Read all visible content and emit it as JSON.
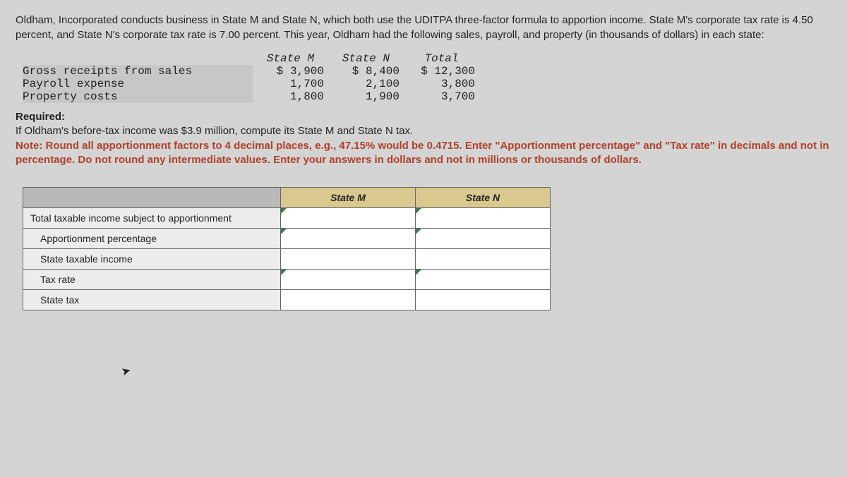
{
  "intro": "Oldham, Incorporated conducts business in State M and State N, which both use the UDITPA three-factor formula to apportion income. State M's corporate tax rate is 4.50 percent, and State N's corporate tax rate is 7.00 percent. This year, Oldham had the following sales, payroll, and property (in thousands of dollars) in each state:",
  "data_table": {
    "headers": {
      "c1": "State M",
      "c2": "State N",
      "c3": "Total"
    },
    "rows": [
      {
        "label": "Gross receipts from sales",
        "m": "$ 3,900",
        "n": "$ 8,400",
        "t": "$ 12,300"
      },
      {
        "label": "Payroll expense",
        "m": "1,700",
        "n": "2,100",
        "t": "3,800"
      },
      {
        "label": "Property costs",
        "m": "1,800",
        "n": "1,900",
        "t": "3,700"
      }
    ]
  },
  "required_heading": "Required:",
  "required_line": "If Oldham's before-tax income was $3.9 million, compute its State M and State N tax.",
  "note_text": "Note: Round all apportionment factors to 4 decimal places, e.g., 47.15% would be 0.4715. Enter \"Apportionment percentage\" and \"Tax rate\" in decimals and not in percentage. Do not round any intermediate values. Enter your answers in dollars and not in millions or thousands of dollars.",
  "answer_table": {
    "col_m": "State M",
    "col_n": "State N",
    "rows": [
      {
        "label": "Total taxable income subject to apportionment",
        "indent": false,
        "tri": true
      },
      {
        "label": "Apportionment percentage",
        "indent": true,
        "tri": true
      },
      {
        "label": "State taxable income",
        "indent": true,
        "tri": false
      },
      {
        "label": "Tax rate",
        "indent": true,
        "tri": true
      },
      {
        "label": "State tax",
        "indent": true,
        "tri": false
      }
    ]
  }
}
